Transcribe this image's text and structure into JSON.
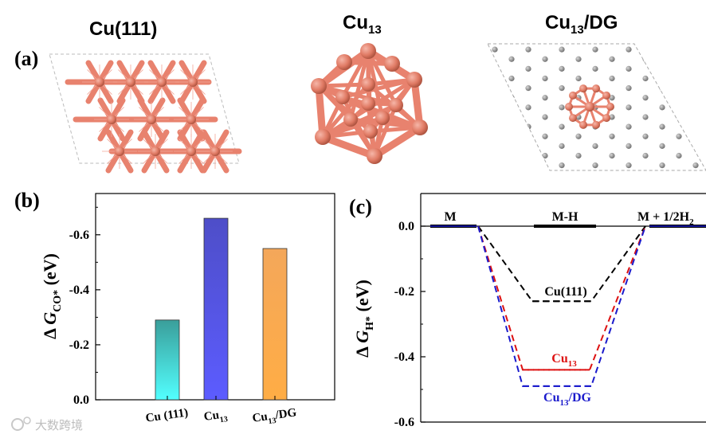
{
  "panels": {
    "a": "(a)",
    "b": "(b)",
    "c": "(c)"
  },
  "structures": [
    {
      "main": "Cu(111)",
      "sub": "",
      "tail": ""
    },
    {
      "main": "Cu",
      "sub": "13",
      "tail": ""
    },
    {
      "main": "Cu",
      "sub": "13",
      "tail": "/DG"
    }
  ],
  "watermark": "大数跨境",
  "colors": {
    "copper": "#e8826e",
    "copper_dark": "#b8523e",
    "carbon": "#8c8c8c",
    "bar1": "#4dd6d6",
    "bar2": "#5a5af0",
    "bar3": "#f7a84c",
    "black": "#000000",
    "red": "#dd1111",
    "blue": "#1a1acc"
  },
  "chart_data": [
    {
      "type": "bar",
      "panel": "b",
      "categories": [
        "Cu (111)",
        "Cu13",
        "Cu13/DG"
      ],
      "category_labels": [
        {
          "main": "Cu (111)",
          "sub": "",
          "tail": ""
        },
        {
          "main": "Cu",
          "sub": "13",
          "tail": ""
        },
        {
          "main": "Cu",
          "sub": "13",
          "tail": "/DG"
        }
      ],
      "values": [
        -0.29,
        -0.66,
        -0.55
      ],
      "ylabel": {
        "prefix": "Δ ",
        "var": "G",
        "sub": "CO*",
        "unit": " (eV)"
      },
      "ylim": [
        0.0,
        -0.75
      ],
      "yticks": [
        0.0,
        -0.2,
        -0.4,
        -0.6
      ],
      "ytick_labels": [
        "0.0",
        "-0.2",
        "-0.4",
        "-0.6"
      ]
    },
    {
      "type": "line",
      "panel": "c",
      "x_states": [
        "M",
        "M-H",
        "M + 1/2H2"
      ],
      "state_labels": [
        {
          "main": "M",
          "sub": "",
          "tail": ""
        },
        {
          "main": "M-H",
          "sub": "",
          "tail": ""
        },
        {
          "main": "M + 1/2H",
          "sub": "2",
          "tail": ""
        }
      ],
      "series": [
        {
          "name": "Cu(111)",
          "label": {
            "main": "Cu(111)",
            "sub": "",
            "tail": ""
          },
          "values": [
            0.0,
            -0.23,
            0.0
          ]
        },
        {
          "name": "Cu13",
          "label": {
            "main": "Cu",
            "sub": "13",
            "tail": ""
          },
          "values": [
            0.0,
            -0.44,
            0.0
          ]
        },
        {
          "name": "Cu13/DG",
          "label": {
            "main": "Cu",
            "sub": "13",
            "tail": "/DG"
          },
          "values": [
            0.0,
            -0.49,
            0.0
          ]
        }
      ],
      "ylabel": {
        "prefix": "Δ ",
        "var": "G",
        "sub": "H*",
        "unit": " (eV)"
      },
      "ylim": [
        0.1,
        -0.6
      ],
      "yticks": [
        0.0,
        -0.2,
        -0.4,
        -0.6
      ],
      "ytick_labels": [
        "0.0",
        "-0.2",
        "-0.4",
        "-0.6"
      ]
    }
  ]
}
